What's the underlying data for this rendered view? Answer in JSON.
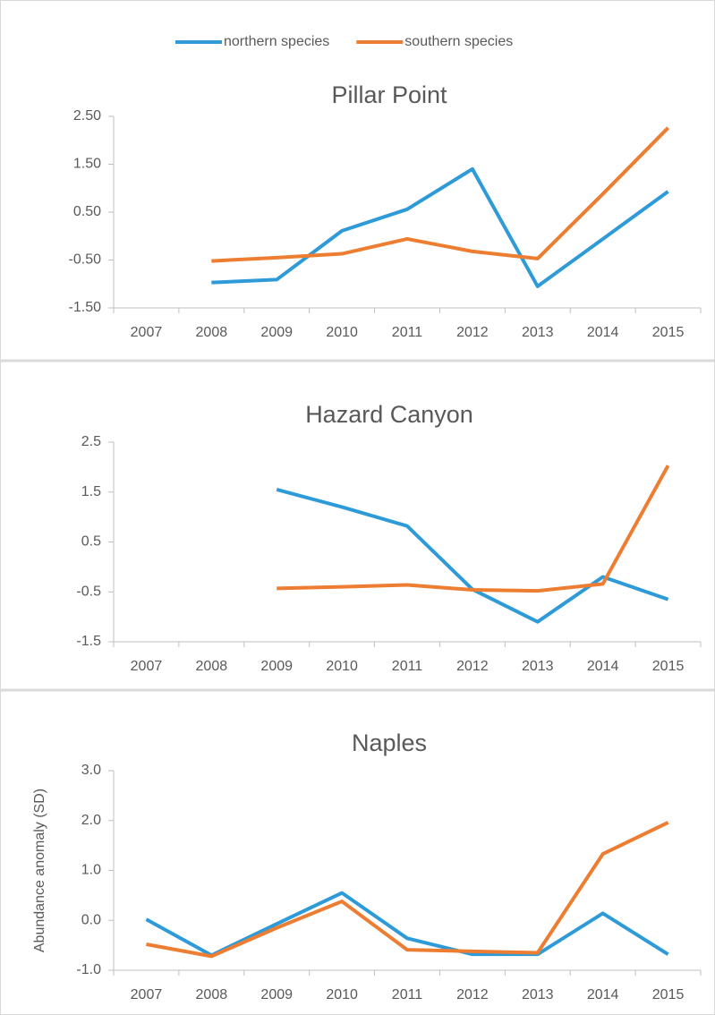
{
  "chart_data": [
    {
      "type": "line",
      "title": "Pillar Point",
      "categories": [
        "2007",
        "2008",
        "2009",
        "2010",
        "2011",
        "2012",
        "2013",
        "2014",
        "2015"
      ],
      "series": [
        {
          "name": "northern species",
          "color": "#2e9bd8",
          "values": [
            null,
            -0.97,
            -0.91,
            0.11,
            0.56,
            1.4,
            -1.05,
            -0.06,
            0.93
          ]
        },
        {
          "name": "southern species",
          "color": "#ed7d31",
          "values": [
            null,
            -0.52,
            -0.45,
            -0.37,
            -0.06,
            -0.32,
            -0.47,
            0.88,
            2.26
          ]
        }
      ],
      "ylim": [
        -1.5,
        2.5
      ],
      "yticks": [
        {
          "value": -1.5,
          "label": "-1.50"
        },
        {
          "value": -0.5,
          "label": "-0.50"
        },
        {
          "value": 0.5,
          "label": "0.50"
        },
        {
          "value": 1.5,
          "label": "1.50"
        },
        {
          "value": 2.5,
          "label": "2.50"
        }
      ],
      "legend": "top"
    },
    {
      "type": "line",
      "title": "Hazard Canyon",
      "categories": [
        "2007",
        "2008",
        "2009",
        "2010",
        "2011",
        "2012",
        "2013",
        "2014",
        "2015"
      ],
      "series": [
        {
          "name": "northern species",
          "color": "#2e9bd8",
          "values": [
            null,
            null,
            1.55,
            1.2,
            0.82,
            -0.45,
            -1.1,
            -0.2,
            -0.65
          ]
        },
        {
          "name": "southern species",
          "color": "#ed7d31",
          "values": [
            null,
            null,
            -0.43,
            -0.4,
            -0.36,
            -0.46,
            -0.48,
            -0.34,
            2.03
          ]
        }
      ],
      "ylim": [
        -1.5,
        2.5
      ],
      "yticks": [
        -1.5,
        -0.5,
        0.5,
        1.5,
        2.5
      ]
    },
    {
      "type": "line",
      "title": "Naples",
      "ylabel": "Abundance anomaly (SD)",
      "categories": [
        "2007",
        "2008",
        "2009",
        "2010",
        "2011",
        "2012",
        "2013",
        "2014",
        "2015"
      ],
      "series": [
        {
          "name": "northern species",
          "color": "#2e9bd8",
          "values": [
            0.02,
            -0.7,
            -0.07,
            0.55,
            -0.36,
            -0.68,
            -0.68,
            0.14,
            -0.68
          ]
        },
        {
          "name": "southern species",
          "color": "#ed7d31",
          "values": [
            -0.48,
            -0.72,
            -0.15,
            0.38,
            -0.59,
            -0.62,
            -0.65,
            1.33,
            1.96
          ]
        }
      ],
      "ylim": [
        -1,
        3
      ],
      "yticks": [
        {
          "value": -1,
          "label": "-1.0"
        },
        {
          "value": 0,
          "label": "0.0"
        },
        {
          "value": 1,
          "label": "1.0"
        },
        {
          "value": 2,
          "label": "2.0"
        },
        {
          "value": 3,
          "label": "3.0"
        }
      ]
    }
  ]
}
